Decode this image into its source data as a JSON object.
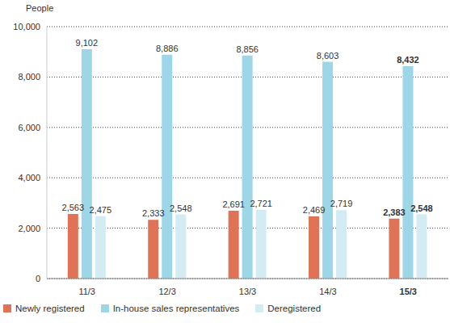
{
  "chart_data": {
    "type": "bar",
    "y_label": "People",
    "categories": [
      "11/3",
      "12/3",
      "13/3",
      "14/3",
      "15/3"
    ],
    "series": [
      {
        "name": "Newly registered",
        "color": "#e07355",
        "values": [
          2563,
          2333,
          2691,
          2469,
          2383
        ],
        "value_labels": [
          "2,563",
          "2,333",
          "2,691",
          "2,469",
          "2,383"
        ]
      },
      {
        "name": "In-house sales representatives",
        "color": "#9dd6e6",
        "values": [
          9102,
          8886,
          8856,
          8603,
          8432
        ],
        "value_labels": [
          "9,102",
          "8,886",
          "8,856",
          "8,603",
          "8,432"
        ]
      },
      {
        "name": "Deregistered",
        "color": "#d3ebf3",
        "values": [
          2475,
          2548,
          2721,
          2719,
          2548
        ],
        "value_labels": [
          "2,475",
          "2,548",
          "2,721",
          "2,719",
          "2,548"
        ]
      }
    ],
    "ylim": [
      0,
      10000
    ],
    "yticks": [
      0,
      {
        "value": 2000,
        "label": "2,000"
      },
      {
        "value": 4000,
        "label": "4,000"
      },
      {
        "value": 6000,
        "label": "6,000"
      },
      {
        "value": 8000,
        "label": "8,000"
      },
      {
        "value": 10000,
        "label": "10,000"
      }
    ],
    "grid": true,
    "data_labels": true,
    "legend": "bottom-left"
  }
}
